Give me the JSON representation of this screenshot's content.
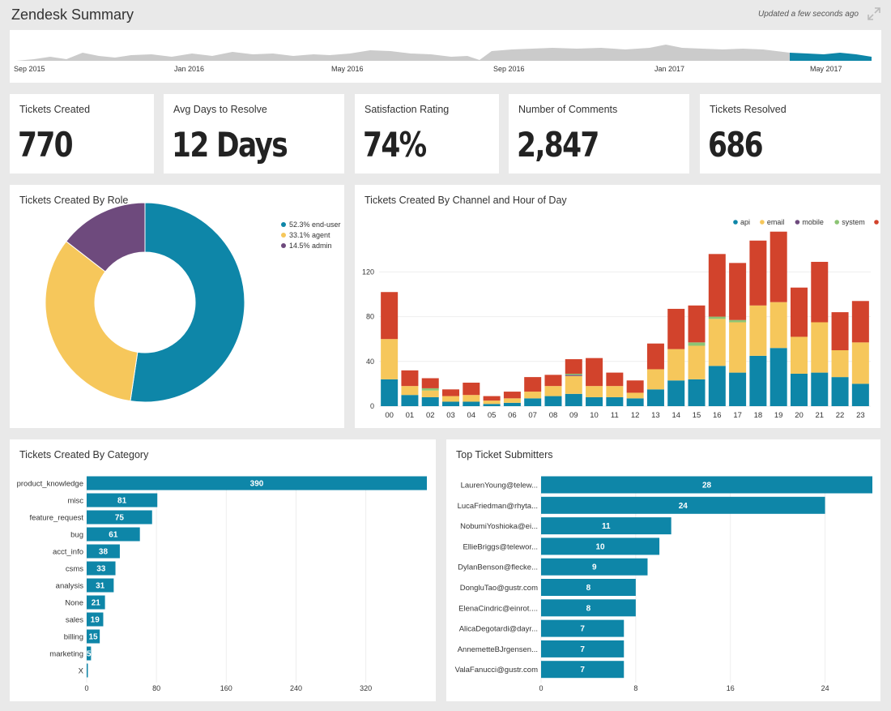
{
  "header": {
    "title": "Zendesk Summary",
    "updated": "Updated a few seconds ago",
    "expand_icon": "expand-icon"
  },
  "timeline": {
    "labels": [
      "Sep 2015",
      "Jan 2016",
      "May 2016",
      "Sep 2016",
      "Jan 2017",
      "May 2017"
    ]
  },
  "colors": {
    "api": "#0e86a8",
    "email": "#f6c75b",
    "mobile": "#6e4a7d",
    "system": "#8cc474",
    "web": "#d2432c",
    "bar": "#0e86a8"
  },
  "kpis": [
    {
      "label": "Tickets Created",
      "value": "770"
    },
    {
      "label": "Avg Days to Resolve",
      "value": "12 Days"
    },
    {
      "label": "Satisfaction Rating",
      "value": "74%"
    },
    {
      "label": "Number of Comments",
      "value": "2,847"
    },
    {
      "label": "Tickets Resolved",
      "value": "686"
    }
  ],
  "role_chart": {
    "title": "Tickets Created By Role",
    "legend": [
      "52.3% end-user",
      "33.1% agent",
      "14.5% admin"
    ]
  },
  "channel_chart": {
    "title": "Tickets Created By Channel and Hour of Day"
  },
  "category_chart": {
    "title": "Tickets Created By Category"
  },
  "submitters_chart": {
    "title": "Top Ticket Submitters"
  },
  "chart_data": [
    {
      "id": "role",
      "type": "pie",
      "title": "Tickets Created By Role",
      "categories": [
        "end-user",
        "agent",
        "admin"
      ],
      "values": [
        52.3,
        33.1,
        14.5
      ],
      "colors": [
        "#0e86a8",
        "#f6c75b",
        "#6e4a7d"
      ],
      "legend": "top-right"
    },
    {
      "id": "channel",
      "type": "bar",
      "stacked": true,
      "title": "Tickets Created By Channel and Hour of Day",
      "categories": [
        "00",
        "01",
        "02",
        "03",
        "04",
        "05",
        "06",
        "07",
        "08",
        "09",
        "10",
        "11",
        "12",
        "13",
        "14",
        "15",
        "16",
        "17",
        "18",
        "19",
        "20",
        "21",
        "22",
        "23"
      ],
      "series": [
        {
          "name": "api",
          "values": [
            24,
            10,
            8,
            4,
            4,
            2,
            3,
            7,
            9,
            11,
            8,
            8,
            7,
            15,
            23,
            24,
            36,
            30,
            45,
            52,
            29,
            30,
            26,
            20
          ]
        },
        {
          "name": "email",
          "values": [
            36,
            8,
            6,
            5,
            6,
            3,
            4,
            6,
            9,
            16,
            10,
            10,
            5,
            18,
            28,
            30,
            42,
            45,
            45,
            41,
            33,
            45,
            24,
            37
          ]
        },
        {
          "name": "mobile",
          "values": [
            0,
            0,
            0,
            0,
            0,
            0,
            0,
            0,
            0,
            1,
            0,
            0,
            0,
            0,
            0,
            0,
            0,
            0,
            0,
            0,
            0,
            0,
            0,
            0
          ]
        },
        {
          "name": "system",
          "values": [
            0,
            0,
            2,
            0,
            0,
            0,
            0,
            0,
            0,
            1,
            0,
            0,
            0,
            0,
            0,
            3,
            2,
            2,
            0,
            0,
            0,
            0,
            0,
            0
          ]
        },
        {
          "name": "web",
          "values": [
            42,
            14,
            9,
            6,
            11,
            4,
            6,
            13,
            10,
            13,
            25,
            12,
            11,
            23,
            36,
            33,
            56,
            51,
            58,
            63,
            44,
            54,
            34,
            37
          ]
        }
      ],
      "yticks": [
        0,
        40,
        80,
        120
      ],
      "ylim": [
        0,
        160
      ],
      "legend": "top-right"
    },
    {
      "id": "category",
      "type": "bar",
      "orientation": "horizontal",
      "title": "Tickets Created By Category",
      "categories": [
        "product_knowledge",
        "misc",
        "feature_request",
        "bug",
        "acct_info",
        "csms",
        "analysis",
        "None",
        "sales",
        "billing",
        "marketing",
        "X"
      ],
      "values": [
        390,
        81,
        75,
        61,
        38,
        33,
        31,
        21,
        19,
        15,
        5,
        1
      ],
      "value_labels": [
        "390",
        "81",
        "75",
        "61",
        "38",
        "33",
        "31",
        "21",
        "19",
        "15",
        "5",
        ""
      ],
      "xticks": [
        0,
        80,
        160,
        240,
        320
      ],
      "xlim": [
        0,
        390
      ]
    },
    {
      "id": "submitters",
      "type": "bar",
      "orientation": "horizontal",
      "title": "Top Ticket Submitters",
      "categories": [
        "LaurenYoung@telew...",
        "LucaFriedman@rhyta...",
        "NobumiYoshioka@ei...",
        "EllieBriggs@telewor...",
        "DylanBenson@flecke...",
        "DongluTao@gustr.com",
        "ElenaCindric@einrot....",
        "AlicaDegotardi@dayr...",
        "AnnemetteBJrgensen...",
        "ValaFanucci@gustr.com"
      ],
      "values": [
        28,
        24,
        11,
        10,
        9,
        8,
        8,
        7,
        7,
        7
      ],
      "xticks": [
        0,
        8,
        16,
        24
      ],
      "xlim": [
        0,
        28
      ]
    }
  ]
}
